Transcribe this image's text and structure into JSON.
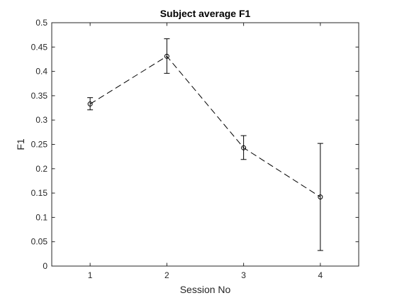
{
  "chart_data": {
    "type": "line",
    "title": "Subject average F1",
    "xlabel": "Session No",
    "ylabel": "F1",
    "xlim": [
      0.5,
      4.5
    ],
    "ylim": [
      0,
      0.5
    ],
    "xticks": [
      1,
      2,
      3,
      4
    ],
    "yticks": [
      0,
      0.05,
      0.1,
      0.15,
      0.2,
      0.25,
      0.3,
      0.35,
      0.4,
      0.45,
      0.5
    ],
    "ytick_labels": [
      "0",
      "0.05",
      "0.1",
      "0.15",
      "0.2",
      "0.25",
      "0.3",
      "0.35",
      "0.4",
      "0.45",
      "0.5"
    ],
    "grid": false,
    "legend": "none",
    "series": [
      {
        "x": [
          1,
          2,
          3,
          4
        ],
        "y": [
          0.333,
          0.431,
          0.243,
          0.142
        ],
        "err_low": [
          0.321,
          0.396,
          0.219,
          0.032
        ],
        "err_high": [
          0.346,
          0.467,
          0.268,
          0.252
        ],
        "line_style": "dashed",
        "marker": "circle",
        "color": "#000000"
      }
    ],
    "axis_color": "#262626"
  }
}
